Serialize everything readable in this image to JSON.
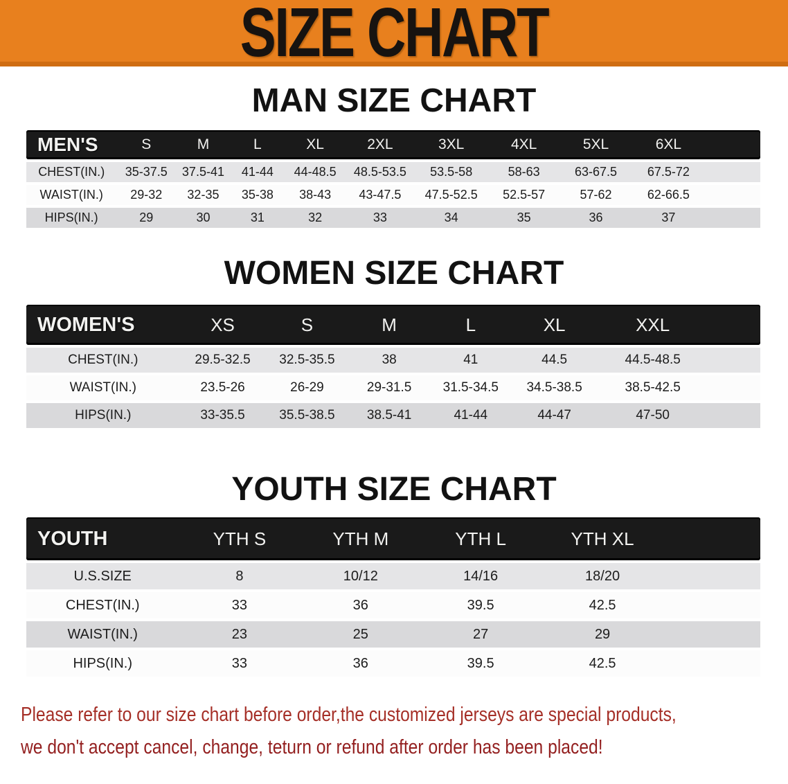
{
  "banner": {
    "title": "SIZE CHART",
    "bg_color": "#E8801E",
    "text_color": "#171310"
  },
  "sections": [
    {
      "heading": "MAN SIZE CHART",
      "table": {
        "corner_label": "MEN'S",
        "columns": [
          "S",
          "M",
          "L",
          "XL",
          "2XL",
          "3XL",
          "4XL",
          "5XL",
          "6XL"
        ],
        "rows": [
          {
            "label": "CHEST(IN.)",
            "values": [
              "35-37.5",
              "37.5-41",
              "41-44",
              "44-48.5",
              "48.5-53.5",
              "53.5-58",
              "58-63",
              "63-67.5",
              "67.5-72"
            ]
          },
          {
            "label": "WAIST(IN.)",
            "values": [
              "29-32",
              "32-35",
              "35-38",
              "38-43",
              "43-47.5",
              "47.5-52.5",
              "52.5-57",
              "57-62",
              "62-66.5"
            ]
          },
          {
            "label": "HIPS(IN.)",
            "values": [
              "29",
              "30",
              "31",
              "32",
              "33",
              "34",
              "35",
              "36",
              "37"
            ]
          }
        ]
      }
    },
    {
      "heading": "WOMEN SIZE CHART",
      "table": {
        "corner_label": "WOMEN'S",
        "columns": [
          "XS",
          "S",
          "M",
          "L",
          "XL",
          "XXL"
        ],
        "rows": [
          {
            "label": "CHEST(IN.)",
            "values": [
              "29.5-32.5",
              "32.5-35.5",
              "38",
              "41",
              "44.5",
              "44.5-48.5"
            ]
          },
          {
            "label": "WAIST(IN.)",
            "values": [
              "23.5-26",
              "26-29",
              "29-31.5",
              "31.5-34.5",
              "34.5-38.5",
              "38.5-42.5"
            ]
          },
          {
            "label": "HIPS(IN.)",
            "values": [
              "33-35.5",
              "35.5-38.5",
              "38.5-41",
              "41-44",
              "44-47",
              "47-50"
            ]
          }
        ]
      }
    },
    {
      "heading": "YOUTH SIZE CHART",
      "table": {
        "corner_label": "YOUTH",
        "columns": [
          "YTH S",
          "YTH M",
          "YTH L",
          "YTH XL"
        ],
        "rows": [
          {
            "label": "U.S.SIZE",
            "values": [
              "8",
              "10/12",
              "14/16",
              "18/20"
            ]
          },
          {
            "label": "CHEST(IN.)",
            "values": [
              "33",
              "36",
              "39.5",
              "42.5"
            ]
          },
          {
            "label": "WAIST(IN.)",
            "values": [
              "23",
              "25",
              "27",
              "29"
            ]
          },
          {
            "label": "HIPS(IN.)",
            "values": [
              "33",
              "36",
              "39.5",
              "42.5"
            ]
          }
        ]
      }
    }
  ],
  "footer": {
    "line1": "Please refer to our size chart before order,the customized jerseys are special products,",
    "line2": "we don't accept cancel, change, teturn or refund after order has been placed!",
    "text_color": "#A52F27"
  }
}
